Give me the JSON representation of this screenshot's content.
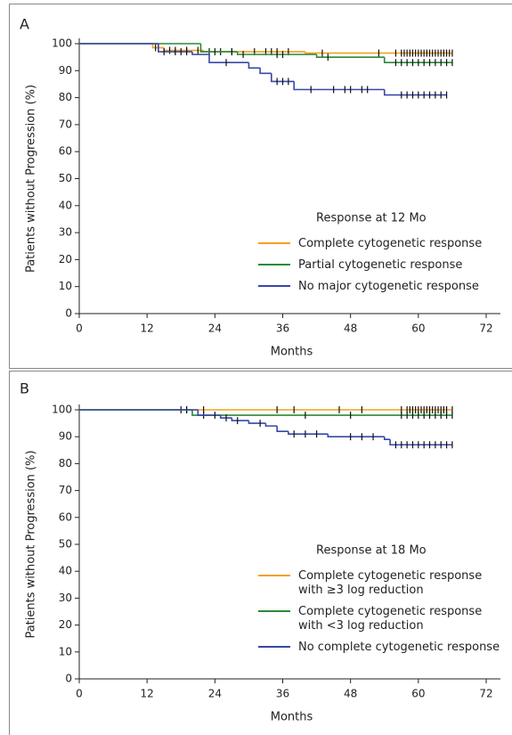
{
  "chart_data": [
    {
      "type": "step",
      "panel_label": "A",
      "xlabel": "Months",
      "ylabel": "Patients without Progression (%)",
      "legend_title": "Response at 12 Mo",
      "xlim": [
        0,
        72
      ],
      "xticks": [
        0,
        12,
        24,
        36,
        48,
        60,
        72
      ],
      "ylim": [
        0,
        100
      ],
      "yticks": [
        0,
        10,
        20,
        30,
        40,
        50,
        60,
        70,
        80,
        90,
        100
      ],
      "series": [
        {
          "name": "Complete cytogenetic response",
          "color": "#f5a01e",
          "x": [
            0,
            13,
            15,
            22,
            40,
            66
          ],
          "values": [
            100,
            98.5,
            97.5,
            97,
            96.5,
            96.5
          ],
          "censored": [
            13.5,
            14,
            16,
            17,
            19,
            21,
            23,
            25,
            27,
            31,
            33,
            34,
            35,
            37,
            43,
            53,
            56,
            57,
            57.5,
            58,
            58.5,
            59,
            59.5,
            60,
            60.5,
            61,
            61.5,
            62,
            62.5,
            63,
            63.5,
            64,
            64.5,
            65,
            65.5,
            66
          ]
        },
        {
          "name": "Partial cytogenetic response",
          "color": "#2a8a3a",
          "x": [
            0,
            21.5,
            28,
            42,
            54,
            66
          ],
          "values": [
            100,
            97,
            96,
            95,
            93,
            93
          ],
          "censored": [
            24,
            27,
            29,
            35,
            36,
            44,
            56,
            57,
            58,
            59,
            60,
            61,
            62,
            63,
            64,
            65,
            66
          ]
        },
        {
          "name": "No major cytogenetic response",
          "color": "#3848a8",
          "x": [
            0,
            14,
            20,
            23,
            30,
            32,
            34,
            38,
            54,
            65
          ],
          "values": [
            100,
            97,
            96,
            93,
            91,
            89,
            86,
            83,
            81,
            81
          ],
          "censored": [
            15,
            17,
            18,
            19,
            26,
            35,
            36,
            37,
            41,
            45,
            47,
            48,
            50,
            51,
            57,
            58,
            59,
            60,
            61,
            62,
            63,
            64,
            65
          ]
        }
      ]
    },
    {
      "type": "step",
      "panel_label": "B",
      "xlabel": "Months",
      "ylabel": "Patients without Progression (%)",
      "legend_title": "Response at 18 Mo",
      "xlim": [
        0,
        72
      ],
      "xticks": [
        0,
        12,
        24,
        36,
        48,
        60,
        72
      ],
      "ylim": [
        0,
        100
      ],
      "yticks": [
        0,
        10,
        20,
        30,
        40,
        50,
        60,
        70,
        80,
        90,
        100
      ],
      "series": [
        {
          "name": "Complete cytogenetic response\nwith ≥3 log reduction",
          "color": "#f5a01e",
          "x": [
            0,
            66
          ],
          "values": [
            100,
            100
          ],
          "censored": [
            19,
            22,
            35,
            38,
            46,
            50,
            57,
            58,
            58.5,
            59,
            59.5,
            60,
            60.5,
            61,
            61.5,
            62,
            62.5,
            63,
            63.5,
            64,
            64.5,
            65,
            66
          ]
        },
        {
          "name": "Complete cytogenetic response\nwith <3 log reduction",
          "color": "#2a8a3a",
          "x": [
            0,
            20,
            66
          ],
          "values": [
            100,
            98,
            98
          ],
          "censored": [
            18,
            19,
            22,
            40,
            48,
            57,
            58,
            59,
            60,
            61,
            62,
            63,
            64,
            65,
            66
          ]
        },
        {
          "name": "No complete cytogenetic response",
          "color": "#3848a8",
          "x": [
            0,
            21,
            25,
            27,
            30,
            33,
            35,
            37,
            44,
            54,
            55,
            66
          ],
          "values": [
            100,
            98,
            97,
            96,
            95,
            94,
            92,
            91,
            90,
            89,
            87,
            87
          ],
          "censored": [
            24,
            26,
            28,
            32,
            38,
            40,
            42,
            48,
            50,
            52,
            56,
            57,
            58,
            59,
            60,
            61,
            62,
            63,
            64,
            65,
            66
          ]
        }
      ]
    }
  ]
}
